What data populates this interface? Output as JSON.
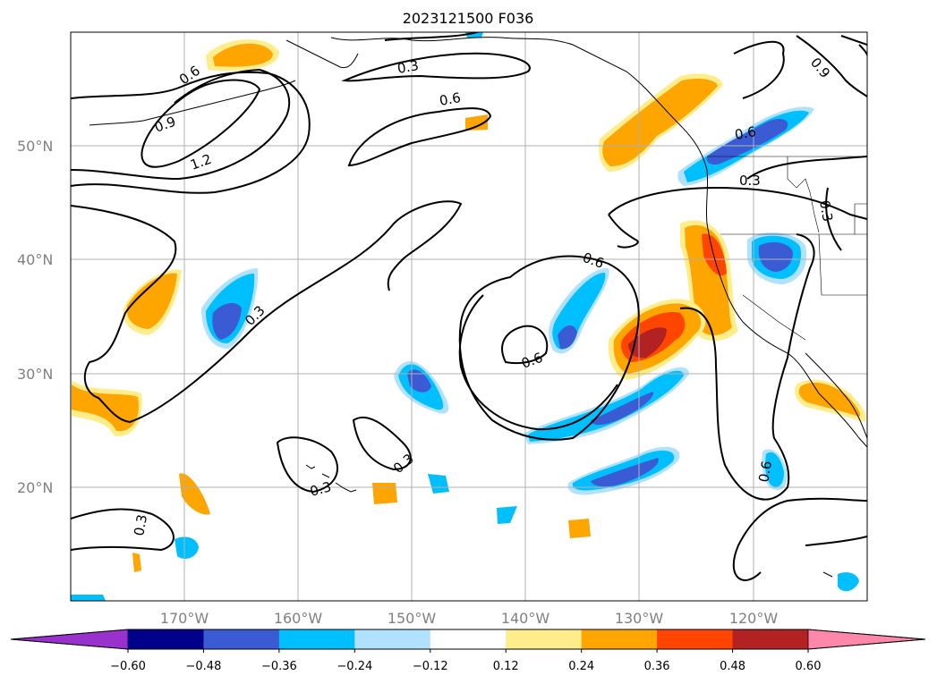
{
  "title": "2023121500 F036",
  "map": {
    "projection": "PlateCarree",
    "lon_range": [
      -180,
      -110
    ],
    "lat_range": [
      10,
      60
    ],
    "gridlines": true,
    "coastlines": true,
    "state_borders": true
  },
  "lat_labels": [
    "50°N",
    "40°N",
    "30°N",
    "20°N"
  ],
  "lon_labels": [
    "170°W",
    "160°W",
    "150°W",
    "140°W",
    "130°W",
    "120°W"
  ],
  "contour_labels": [
    "0.3",
    "0.6",
    "0.9",
    "1.2"
  ],
  "colorbar": {
    "ticks": [
      "−0.60",
      "−0.48",
      "−0.36",
      "−0.24",
      "−0.12",
      "0.12",
      "0.24",
      "0.36",
      "0.48",
      "0.60"
    ],
    "colors": [
      "#9932cc",
      "#00008b",
      "#3a5bd4",
      "#00bfff",
      "#b0e2ff",
      "#ffffff",
      "#ffec8b",
      "#ffa500",
      "#ff4500",
      "#b22222",
      "#ff88aa"
    ],
    "extend": "both"
  }
}
